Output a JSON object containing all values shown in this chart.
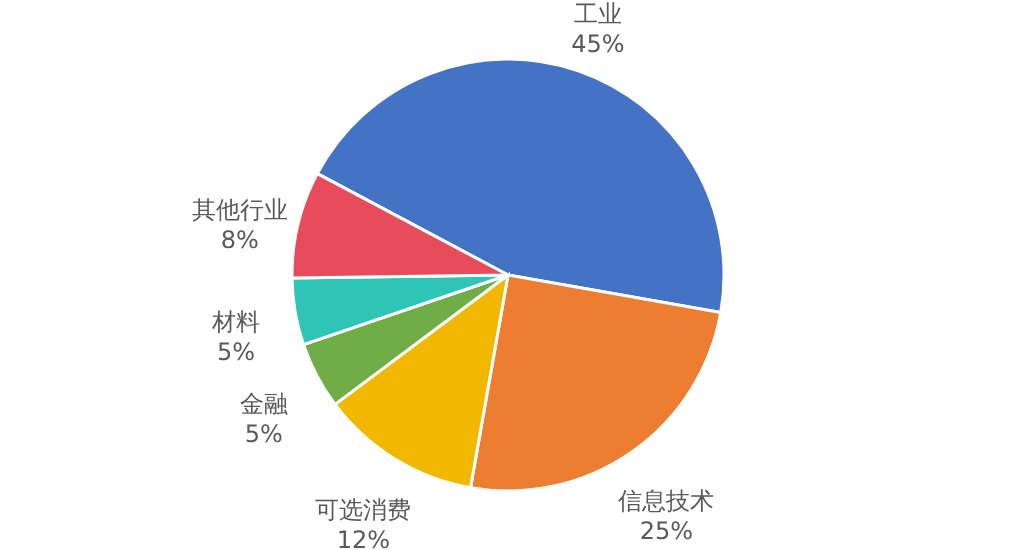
{
  "chart_data": {
    "type": "pie",
    "categories": [
      "工业",
      "信息技术",
      "可选消费",
      "金融",
      "材料",
      "其他行业"
    ],
    "values": [
      45,
      25,
      12,
      5,
      5,
      8
    ],
    "value_labels": [
      "45%",
      "25%",
      "12%",
      "5%",
      "5%",
      "8%"
    ],
    "colors": [
      "#4472c4",
      "#ed7d31",
      "#f2b800",
      "#70ad47",
      "#2ec4b6",
      "#e84c5c"
    ]
  }
}
